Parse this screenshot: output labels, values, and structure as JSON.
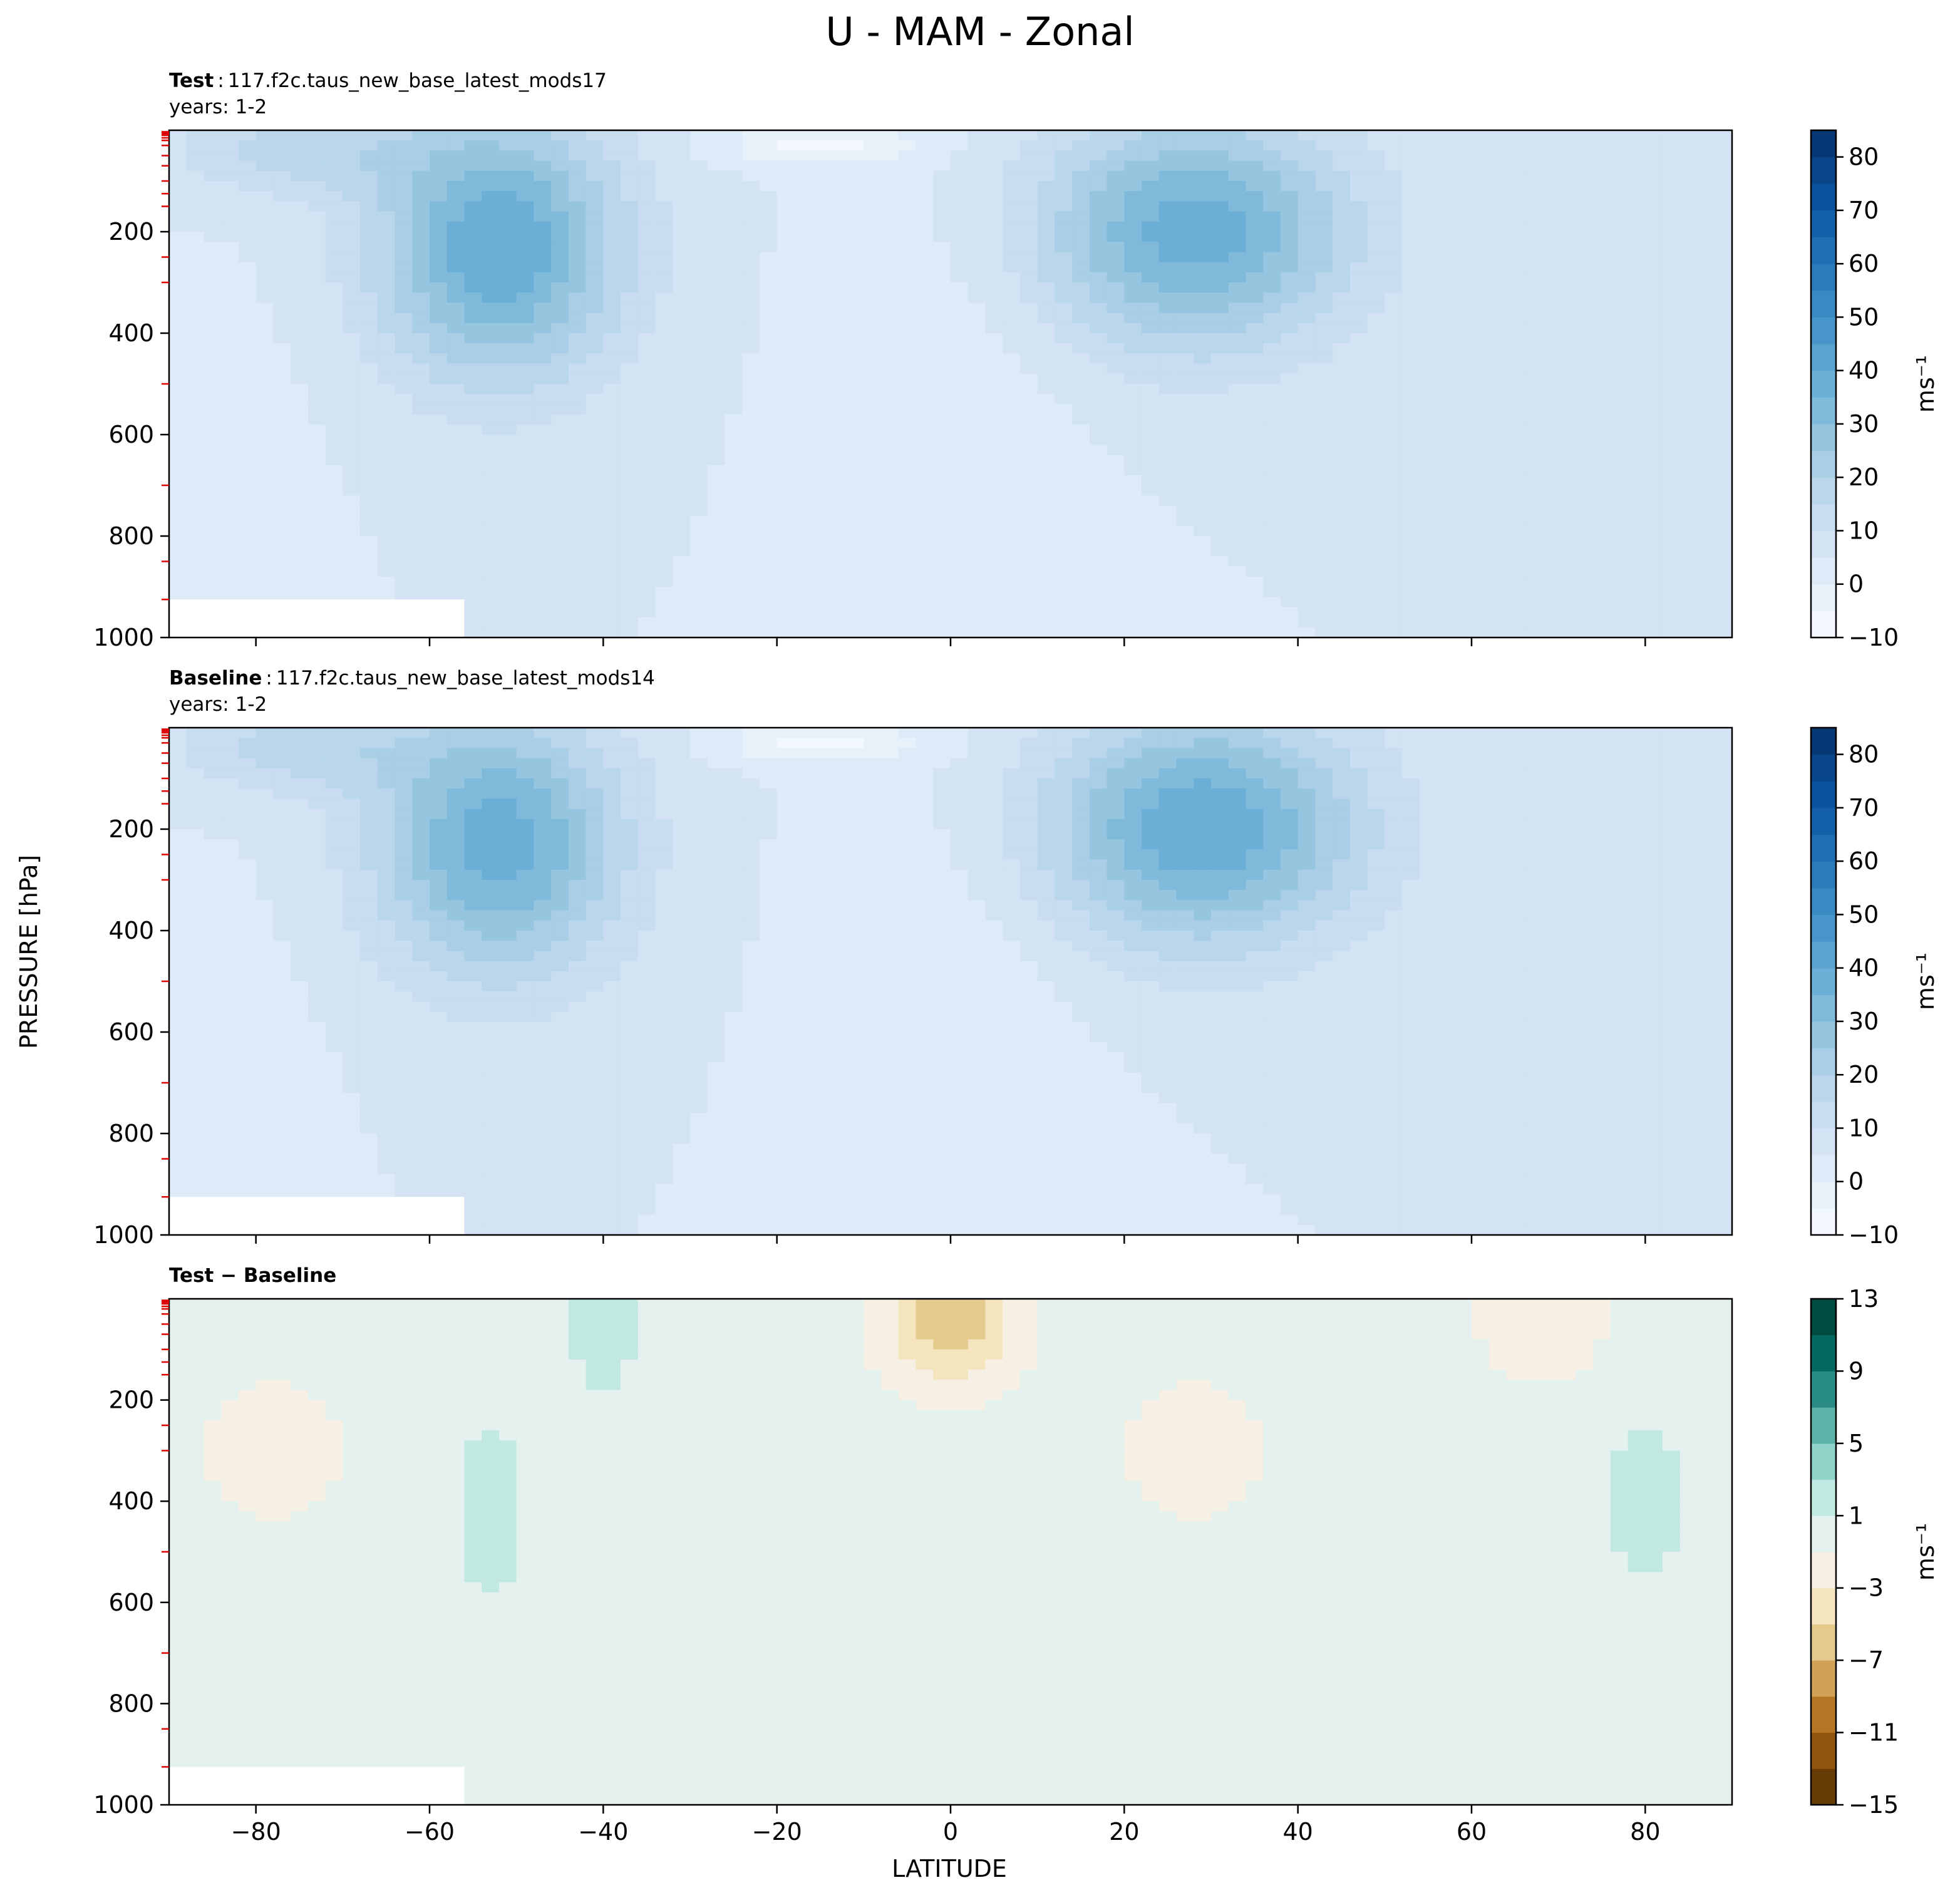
{
  "figure": {
    "title": "U - MAM - Zonal",
    "ylabel": "PRESSURE [hPa]",
    "xlabel": "LATITUDE"
  },
  "chart_data": [
    {
      "type": "heatmap",
      "panel": "test",
      "title_bold": "Test",
      "title_sep": ":",
      "title_case": "117.f2c.taus_new_base_latest_mods17",
      "title_years": "years: 1-2",
      "x_label": "LATITUDE",
      "y_label": "PRESSURE [hPa]",
      "xlim": [
        -90,
        90
      ],
      "ylim": [
        1000,
        0
      ],
      "x_ticks": [
        -80,
        -60,
        -40,
        -20,
        0,
        20,
        40,
        60,
        80
      ],
      "x_ticklabels": [
        "−80",
        "−60",
        "−40",
        "−20",
        "0",
        "20",
        "40",
        "60",
        "80"
      ],
      "y_ticks": [
        200,
        400,
        600,
        800,
        1000
      ],
      "y_ticklabels": [
        "200",
        "400",
        "600",
        "800",
        "1000"
      ],
      "colormap": "Blues",
      "colorbar_unit": "ms⁻¹",
      "colorbar_ticks": [
        -10,
        0,
        10,
        20,
        30,
        40,
        50,
        60,
        70,
        80
      ],
      "colorbar_ticklabels": [
        "−10",
        "0",
        "10",
        "20",
        "30",
        "40",
        "50",
        "60",
        "70",
        "80"
      ],
      "colorbar_range": [
        -10,
        85
      ],
      "features": {
        "sh_jet": {
          "lat": -52,
          "p": 230,
          "peak": 40
        },
        "nh_jet": {
          "lat": 28,
          "p": 200,
          "peak": 38
        },
        "equatorial_easterly_min": {
          "lat": -15,
          "p": 30,
          "value": -8
        }
      }
    },
    {
      "type": "heatmap",
      "panel": "baseline",
      "title_bold": "Baseline",
      "title_sep": ":",
      "title_case": "117.f2c.taus_new_base_latest_mods14",
      "title_years": "years: 1-2",
      "x_label": "LATITUDE",
      "y_label": "PRESSURE [hPa]",
      "xlim": [
        -90,
        90
      ],
      "ylim": [
        1000,
        0
      ],
      "x_ticks": [
        -80,
        -60,
        -40,
        -20,
        0,
        20,
        40,
        60,
        80
      ],
      "x_ticklabels": [
        "−80",
        "−60",
        "−40",
        "−20",
        "0",
        "20",
        "40",
        "60",
        "80"
      ],
      "y_ticks": [
        200,
        400,
        600,
        800,
        1000
      ],
      "y_ticklabels": [
        "200",
        "400",
        "600",
        "800",
        "1000"
      ],
      "colormap": "Blues",
      "colorbar_unit": "ms⁻¹",
      "colorbar_ticks": [
        -10,
        0,
        10,
        20,
        30,
        40,
        50,
        60,
        70,
        80
      ],
      "colorbar_ticklabels": [
        "−10",
        "0",
        "10",
        "20",
        "30",
        "40",
        "50",
        "60",
        "70",
        "80"
      ],
      "colorbar_range": [
        -10,
        85
      ],
      "features": {
        "sh_jet": {
          "lat": -52,
          "p": 230,
          "peak": 38
        },
        "nh_jet": {
          "lat": 29,
          "p": 200,
          "peak": 40
        },
        "equatorial_easterly_min": {
          "lat": -15,
          "p": 30,
          "value": -8
        }
      }
    },
    {
      "type": "heatmap",
      "panel": "difference",
      "title_bold": "Test − Baseline",
      "x_label": "LATITUDE",
      "y_label": "PRESSURE [hPa]",
      "xlim": [
        -90,
        90
      ],
      "ylim": [
        1000,
        0
      ],
      "x_ticks": [
        -80,
        -60,
        -40,
        -20,
        0,
        20,
        40,
        60,
        80
      ],
      "x_ticklabels": [
        "−80",
        "−60",
        "−40",
        "−20",
        "0",
        "20",
        "40",
        "60",
        "80"
      ],
      "y_ticks": [
        200,
        400,
        600,
        800,
        1000
      ],
      "y_ticklabels": [
        "200",
        "400",
        "600",
        "800",
        "1000"
      ],
      "colormap": "BrBG",
      "colorbar_unit": "ms⁻¹",
      "colorbar_ticks": [
        -15,
        -11,
        -7,
        -3,
        1,
        5,
        9,
        13
      ],
      "colorbar_ticklabels": [
        "−15",
        "−11",
        "−7",
        "−3",
        "1",
        "5",
        "9",
        "13"
      ],
      "colorbar_range": [
        -15,
        13
      ],
      "features": {
        "negative_regions": [
          {
            "lat": -78,
            "p": 300,
            "value": -2
          },
          {
            "lat": 28,
            "p": 300,
            "value": -2
          },
          {
            "lat": 0,
            "p": 40,
            "value": -5
          },
          {
            "lat": 68,
            "p": 30,
            "value": -2
          }
        ],
        "positive_regions": [
          {
            "lat": -53,
            "p": 420,
            "value": 2
          },
          {
            "lat": 80,
            "p": 400,
            "value": 2
          },
          {
            "lat": -40,
            "p": 30,
            "value": 2
          }
        ]
      }
    }
  ]
}
